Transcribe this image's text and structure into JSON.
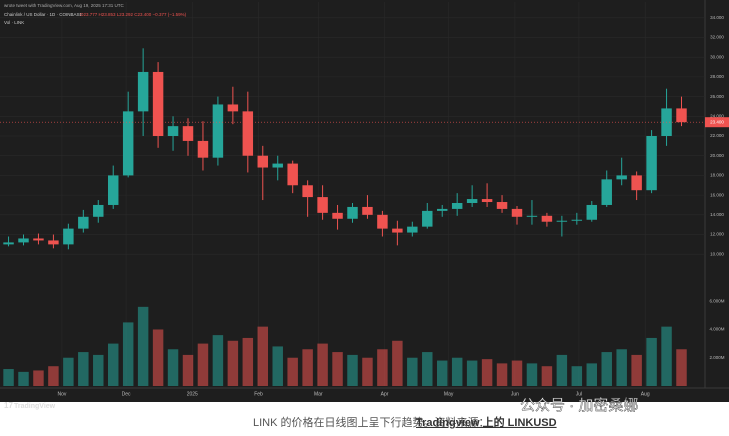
{
  "chart_data": {
    "type": "candlestick",
    "header": "wrote tweet with TradingView.com, Aug 19, 2025 17:31 UTC",
    "symbol": "Chainlink / US Dollar · 1D · COINBASE",
    "ohlc_text": "O23.777 H23.853 L23.292 C23.400 −0.377 (−1.59%)",
    "volume_title": "Vol · LINK",
    "logo": "TradingView",
    "caption": "LINK 的价格在日线图上呈下行趋势。资料来源：",
    "caption_source": "Tradingview 上的 LINKUSD",
    "watermark": "公众号 · 加密桑娜",
    "up_color": "#26a69a",
    "down_color": "#ef5350",
    "x": [
      0,
      7,
      14,
      21,
      28,
      35,
      42,
      49,
      56,
      63,
      70,
      77,
      84,
      91,
      98,
      105,
      112,
      119,
      126,
      133,
      140,
      147,
      154,
      161,
      168,
      175,
      182,
      189,
      196,
      203,
      210,
      217,
      224,
      231,
      238,
      245,
      252,
      259,
      266,
      273,
      280,
      287,
      294,
      301,
      308,
      315
    ],
    "open": [
      11.0,
      11.2,
      11.6,
      11.4,
      11.0,
      12.6,
      13.8,
      15.0,
      18.0,
      24.5,
      28.5,
      22.0,
      23.0,
      21.5,
      19.8,
      25.2,
      24.5,
      20.0,
      18.8,
      19.2,
      17.0,
      15.8,
      14.2,
      13.6,
      14.8,
      14.0,
      12.6,
      12.2,
      12.8,
      14.4,
      14.6,
      15.2,
      15.6,
      15.3,
      14.6,
      13.8,
      13.9,
      13.3,
      13.4,
      13.5,
      15.0,
      17.6,
      18.0,
      16.5,
      22.0,
      24.8
    ],
    "high": [
      11.8,
      12.0,
      12.1,
      12.0,
      13.1,
      14.5,
      15.5,
      19.0,
      26.5,
      30.9,
      29.5,
      24.0,
      23.8,
      23.5,
      26.0,
      27.0,
      26.5,
      21.0,
      20.0,
      19.5,
      17.5,
      17.0,
      15.0,
      15.2,
      16.0,
      14.4,
      13.4,
      13.3,
      15.2,
      15.0,
      16.2,
      17.0,
      17.2,
      16.0,
      14.9,
      15.5,
      14.2,
      13.9,
      14.2,
      15.4,
      18.5,
      19.8,
      18.4,
      22.6,
      26.8,
      26.0
    ],
    "low": [
      10.8,
      10.9,
      11.0,
      10.6,
      10.5,
      12.2,
      13.2,
      14.6,
      17.8,
      22.0,
      20.8,
      20.5,
      20.0,
      18.5,
      19.0,
      23.2,
      18.3,
      15.5,
      17.5,
      16.2,
      13.8,
      13.5,
      12.5,
      13.2,
      13.6,
      11.8,
      10.9,
      11.8,
      12.6,
      13.8,
      13.9,
      14.8,
      14.8,
      14.2,
      13.0,
      13.0,
      12.8,
      11.8,
      13.0,
      13.3,
      14.8,
      17.0,
      15.5,
      16.2,
      21.0,
      23.0
    ],
    "close": [
      11.2,
      11.6,
      11.4,
      11.0,
      12.6,
      13.8,
      15.0,
      18.0,
      24.5,
      28.5,
      22.0,
      23.0,
      21.5,
      19.8,
      25.2,
      24.5,
      20.0,
      18.8,
      19.2,
      17.0,
      15.8,
      14.2,
      13.6,
      14.8,
      14.0,
      12.6,
      12.2,
      12.8,
      14.4,
      14.6,
      15.2,
      15.6,
      15.3,
      14.6,
      13.8,
      13.9,
      13.3,
      13.4,
      13.5,
      15.0,
      17.6,
      18.0,
      16.5,
      22.0,
      24.8,
      23.4
    ],
    "volume": [
      1.2,
      1.0,
      1.1,
      1.4,
      2.0,
      2.4,
      2.2,
      3.0,
      4.5,
      5.6,
      4.0,
      2.6,
      2.2,
      3.0,
      3.6,
      3.2,
      3.4,
      4.2,
      2.8,
      2.0,
      2.6,
      3.0,
      2.4,
      2.2,
      2.0,
      2.6,
      3.2,
      2.0,
      2.4,
      1.8,
      2.0,
      1.8,
      1.9,
      1.6,
      1.8,
      1.6,
      1.4,
      2.2,
      1.4,
      1.6,
      2.4,
      2.6,
      2.2,
      3.4,
      4.2,
      2.6
    ],
    "xlim": [
      -4,
      326
    ],
    "xticks": [
      {
        "value": 25,
        "label": "Nov"
      },
      {
        "value": 55,
        "label": "Dec"
      },
      {
        "value": 86,
        "label": "2025"
      },
      {
        "value": 117,
        "label": "Feb"
      },
      {
        "value": 145,
        "label": "Mar"
      },
      {
        "value": 176,
        "label": "Apr"
      },
      {
        "value": 206,
        "label": "May"
      },
      {
        "value": 237,
        "label": "Jun"
      },
      {
        "value": 267,
        "label": "Jul"
      },
      {
        "value": 298,
        "label": "Aug"
      }
    ],
    "ylim": [
      8.4,
      35.6
    ],
    "yticks": [
      {
        "value": 34,
        "label": "34.000"
      },
      {
        "value": 32,
        "label": "32.000"
      },
      {
        "value": 30,
        "label": "30.000"
      },
      {
        "value": 28,
        "label": "28.000"
      },
      {
        "value": 26,
        "label": "26.000"
      },
      {
        "value": 24,
        "label": "24.000"
      },
      {
        "value": 22,
        "label": "22.000"
      },
      {
        "value": 20,
        "label": "20.000"
      },
      {
        "value": 18,
        "label": "18.000"
      },
      {
        "value": 16,
        "label": "16.000"
      },
      {
        "value": 14,
        "label": "14.000"
      },
      {
        "value": 12,
        "label": "12.000"
      },
      {
        "value": 10,
        "label": "10.000"
      }
    ],
    "volume_ylim": [
      0,
      7.5
    ],
    "volume_ticks": [
      {
        "value": 6,
        "label": "6.000M"
      },
      {
        "value": 4,
        "label": "4.000M"
      },
      {
        "value": 2,
        "label": "2.000M"
      }
    ],
    "last_price": {
      "value": 23.4,
      "label": "23.400"
    },
    "grid": true
  }
}
